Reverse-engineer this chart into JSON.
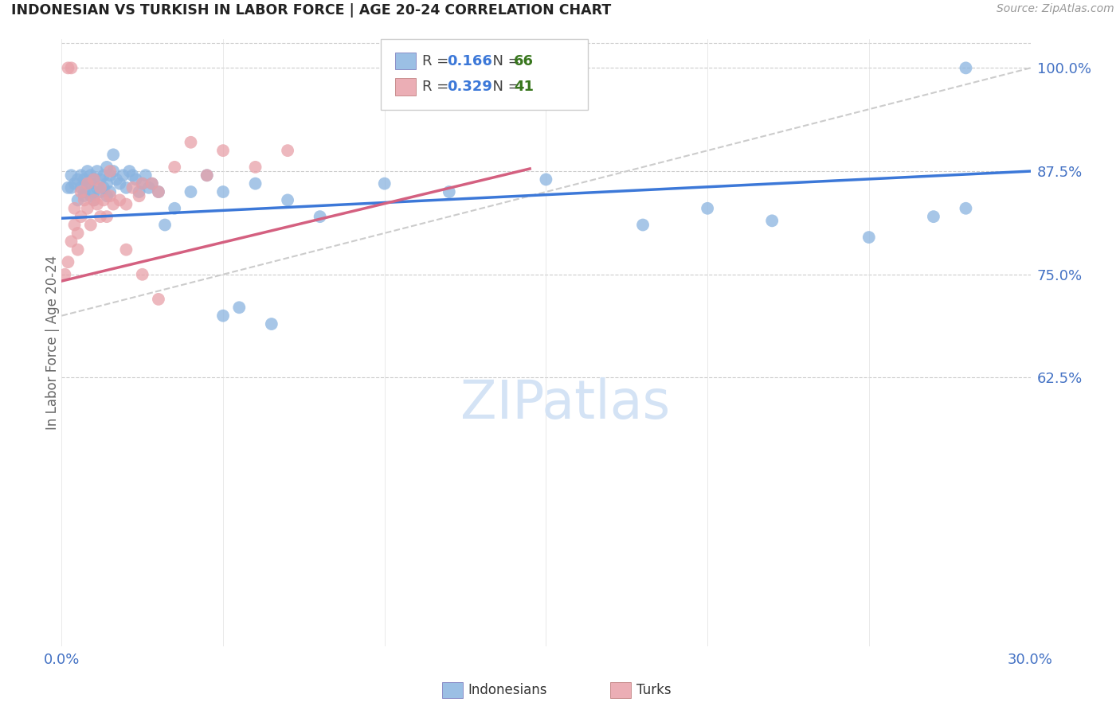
{
  "title": "INDONESIAN VS TURKISH IN LABOR FORCE | AGE 20-24 CORRELATION CHART",
  "source": "Source: ZipAtlas.com",
  "ylabel": "In Labor Force | Age 20-24",
  "xlim": [
    0.0,
    0.3
  ],
  "ylim": [
    0.3,
    1.035
  ],
  "yticks": [
    0.625,
    0.75,
    0.875,
    1.0
  ],
  "ytick_labels": [
    "62.5%",
    "75.0%",
    "87.5%",
    "100.0%"
  ],
  "xticks": [
    0.0,
    0.05,
    0.1,
    0.15,
    0.2,
    0.25,
    0.3
  ],
  "r_indonesian": 0.166,
  "n_indonesian": 66,
  "r_turkish": 0.329,
  "n_turkish": 41,
  "blue_color": "#8ab4e0",
  "pink_color": "#e8a0a8",
  "blue_line_color": "#3c78d8",
  "pink_line_color": "#d46080",
  "ref_line_color": "#cccccc",
  "grid_color": "#cccccc",
  "background_color": "#ffffff",
  "tick_color": "#4472c4",
  "legend_r_color": "#3c78d8",
  "legend_n_color": "#38761d",
  "watermark_color": "#d4e3f5",
  "blue_line_x": [
    0.0,
    0.3
  ],
  "blue_line_y": [
    0.818,
    0.875
  ],
  "pink_line_x": [
    0.0,
    0.145
  ],
  "pink_line_y": [
    0.742,
    0.878
  ],
  "ref_line_x": [
    0.0,
    0.3
  ],
  "ref_line_y": [
    0.7,
    1.0
  ],
  "indonesian_x": [
    0.002,
    0.003,
    0.003,
    0.004,
    0.005,
    0.005,
    0.006,
    0.006,
    0.007,
    0.007,
    0.007,
    0.008,
    0.008,
    0.009,
    0.009,
    0.009,
    0.01,
    0.01,
    0.01,
    0.011,
    0.011,
    0.012,
    0.012,
    0.013,
    0.013,
    0.014,
    0.014,
    0.014,
    0.015,
    0.015,
    0.016,
    0.016,
    0.017,
    0.018,
    0.019,
    0.02,
    0.021,
    0.022,
    0.023,
    0.024,
    0.025,
    0.026,
    0.027,
    0.028,
    0.03,
    0.032,
    0.035,
    0.04,
    0.045,
    0.05,
    0.06,
    0.07,
    0.08,
    0.1,
    0.12,
    0.15,
    0.18,
    0.2,
    0.22,
    0.25,
    0.27,
    0.28,
    0.05,
    0.055,
    0.065,
    0.28
  ],
  "indonesian_y": [
    0.855,
    0.87,
    0.855,
    0.86,
    0.865,
    0.84,
    0.855,
    0.87,
    0.865,
    0.85,
    0.845,
    0.875,
    0.86,
    0.87,
    0.86,
    0.845,
    0.865,
    0.85,
    0.84,
    0.875,
    0.855,
    0.865,
    0.85,
    0.87,
    0.855,
    0.88,
    0.86,
    0.845,
    0.87,
    0.85,
    0.895,
    0.875,
    0.865,
    0.86,
    0.87,
    0.855,
    0.875,
    0.87,
    0.865,
    0.85,
    0.86,
    0.87,
    0.855,
    0.86,
    0.85,
    0.81,
    0.83,
    0.85,
    0.87,
    0.85,
    0.86,
    0.84,
    0.82,
    0.86,
    0.85,
    0.865,
    0.81,
    0.83,
    0.815,
    0.795,
    0.82,
    0.83,
    0.7,
    0.71,
    0.69,
    1.0
  ],
  "turkish_x": [
    0.001,
    0.002,
    0.003,
    0.004,
    0.005,
    0.005,
    0.006,
    0.007,
    0.008,
    0.009,
    0.01,
    0.011,
    0.012,
    0.013,
    0.014,
    0.015,
    0.016,
    0.018,
    0.02,
    0.022,
    0.024,
    0.025,
    0.028,
    0.03,
    0.035,
    0.04,
    0.045,
    0.05,
    0.06,
    0.07,
    0.002,
    0.003,
    0.004,
    0.006,
    0.008,
    0.01,
    0.012,
    0.015,
    0.02,
    0.025,
    0.03
  ],
  "turkish_y": [
    0.75,
    0.765,
    0.79,
    0.81,
    0.8,
    0.78,
    0.82,
    0.84,
    0.83,
    0.81,
    0.84,
    0.835,
    0.82,
    0.84,
    0.82,
    0.845,
    0.835,
    0.84,
    0.835,
    0.855,
    0.845,
    0.86,
    0.86,
    0.85,
    0.88,
    0.91,
    0.87,
    0.9,
    0.88,
    0.9,
    1.0,
    1.0,
    0.83,
    0.85,
    0.86,
    0.865,
    0.855,
    0.875,
    0.78,
    0.75,
    0.72
  ]
}
